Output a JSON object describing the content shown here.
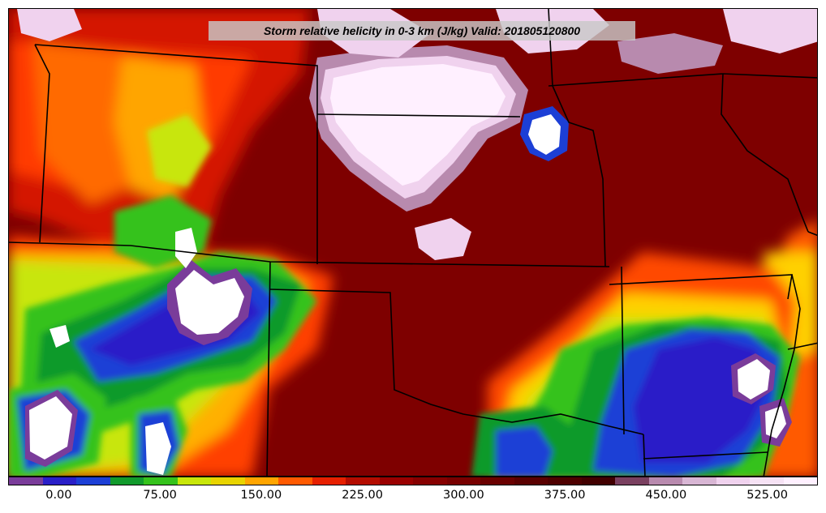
{
  "title": "Storm relative helicity in 0-3 km (J/kg) Valid: 201805120800",
  "colorbar": {
    "colors": [
      "#7a3c9a",
      "#2a1fc8",
      "#1c3fd6",
      "#119a2c",
      "#35c21c",
      "#c8e60a",
      "#e8d400",
      "#ffa500",
      "#ff5a00",
      "#e62000",
      "#b40c00",
      "#9a0000",
      "#860000",
      "#780000",
      "#6a0000",
      "#5a0000",
      "#4e0000",
      "#420000",
      "#7a4060",
      "#b88aae",
      "#d8b6d4",
      "#f0d2ee",
      "#f6e2f4",
      "#fff0ff"
    ],
    "tick_labels": [
      "0.00",
      "75.00",
      "150.00",
      "225.00",
      "300.00",
      "375.00",
      "450.00",
      "525.00"
    ],
    "tick_values": [
      0,
      75,
      150,
      225,
      300,
      375,
      450,
      525
    ],
    "range": [
      -37.5,
      562.5
    ]
  },
  "map": {
    "region": "Central United States (Great Plains)",
    "color_min": "#2a1fc8",
    "color_max": "#fff0ff",
    "background_color": "#8a0000"
  }
}
